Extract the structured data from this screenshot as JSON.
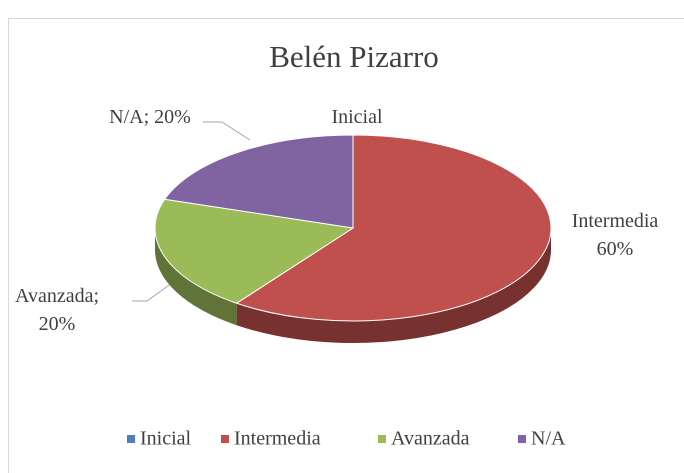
{
  "chart_data": {
    "type": "pie",
    "title": "Belén Pizarro",
    "categories": [
      "Inicial",
      "Intermedia",
      "Avanzada",
      "N/A"
    ],
    "values": [
      0,
      60,
      20,
      20
    ],
    "value_labels": [
      "Inicial",
      "Intermedia\n60%",
      "Avanzada;\n20%",
      "N/A; 20%"
    ],
    "colors": [
      "#4f81bd",
      "#c0504d",
      "#9bbb59",
      "#8064a2"
    ],
    "legend": "bottom"
  }
}
